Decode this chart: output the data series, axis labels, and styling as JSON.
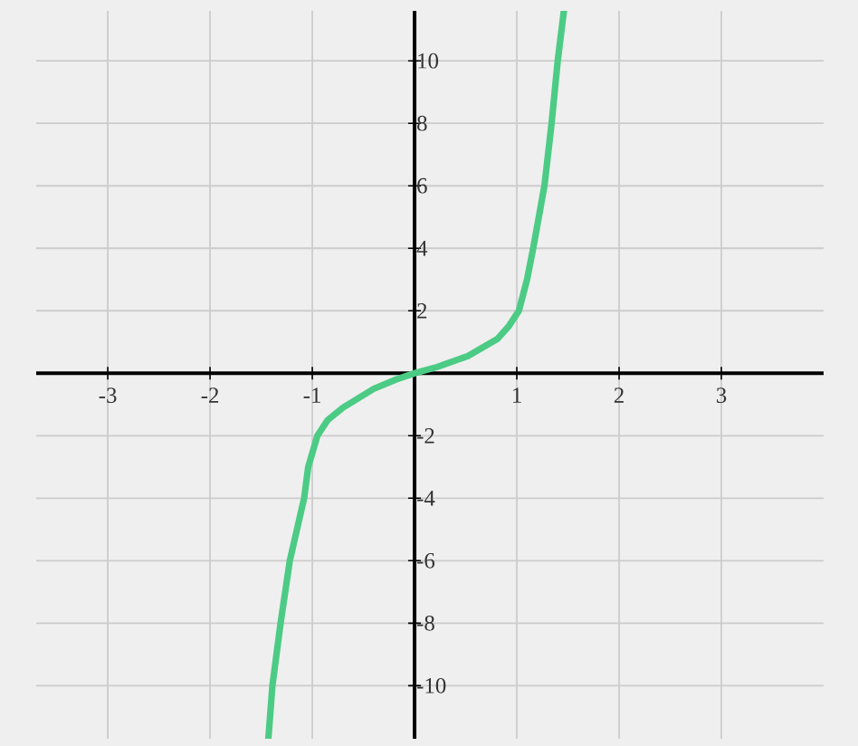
{
  "chart_data": {
    "type": "line",
    "x": [
      -1.43,
      -1.39,
      -1.31,
      -1.22,
      -1.08,
      -1.04,
      -0.95,
      -0.85,
      -0.7,
      -0.4,
      -0.18,
      0,
      0.22,
      0.52,
      0.81,
      0.92,
      1.02,
      1.1,
      1.16,
      1.27,
      1.34,
      1.4,
      1.46
    ],
    "series": [
      {
        "color": "#4ccb85",
        "values": [
          -11.7,
          -10,
          -8,
          -6,
          -4,
          -3,
          -2,
          -1.5,
          -1.1,
          -0.5,
          -0.2,
          0,
          0.2,
          0.55,
          1.1,
          1.5,
          2,
          3,
          4,
          6,
          8,
          10,
          11.6
        ]
      }
    ],
    "xlim": [
      -3.7,
      4.0
    ],
    "ylim": [
      -11.7,
      11.6
    ],
    "xticks": [
      -3,
      -2,
      -1,
      1,
      2,
      3
    ],
    "yticks": [
      -10,
      -8,
      -6,
      -4,
      -2,
      2,
      4,
      6,
      8,
      10
    ],
    "grid": true,
    "line_style": "solid"
  }
}
